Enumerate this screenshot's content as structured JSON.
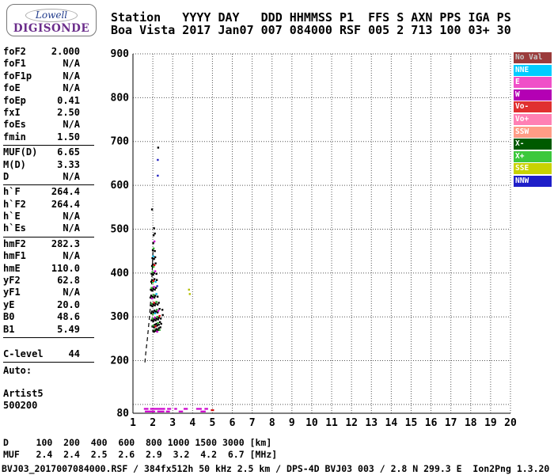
{
  "logo": {
    "line1": "Lowell",
    "line2": "DIGISONDE"
  },
  "header": {
    "line1": "Station   YYYY DAY   DDD HHMMSS P1  FFS S AXN PPS IGA PS",
    "line2": "Boa Vista 2017 Jan07 007 084000 RSF 005 2 713 100 03+ 30"
  },
  "params": {
    "groups": [
      {
        "rows": [
          {
            "label": "foF2",
            "value": "2.000"
          },
          {
            "label": "foF1",
            "value": "N/A"
          },
          {
            "label": "foF1p",
            "value": "N/A"
          },
          {
            "label": "foE",
            "value": "N/A"
          },
          {
            "label": "foEp",
            "value": "0.41"
          },
          {
            "label": "fxI",
            "value": "2.50"
          },
          {
            "label": "foEs",
            "value": "N/A"
          },
          {
            "label": "fmin",
            "value": "1.50"
          }
        ]
      },
      {
        "rows": [
          {
            "label": "MUF(D)",
            "value": "6.65"
          },
          {
            "label": "M(D)",
            "value": "3.33"
          },
          {
            "label": "D",
            "value": "N/A"
          }
        ]
      },
      {
        "rows": [
          {
            "label": "h`F",
            "value": "264.4"
          },
          {
            "label": "h`F2",
            "value": "264.4"
          },
          {
            "label": "h`E",
            "value": "N/A"
          },
          {
            "label": "h`Es",
            "value": "N/A"
          }
        ]
      },
      {
        "rows": [
          {
            "label": "hmF2",
            "value": "282.3"
          },
          {
            "label": "hmF1",
            "value": "N/A"
          },
          {
            "label": "hmE",
            "value": "110.0"
          },
          {
            "label": "yF2",
            "value": "62.8"
          },
          {
            "label": "yF1",
            "value": "N/A"
          },
          {
            "label": "yE",
            "value": "20.0"
          },
          {
            "label": "B0",
            "value": "48.6"
          },
          {
            "label": "B1",
            "value": "5.49"
          }
        ]
      },
      {
        "rows": [
          {
            "label": "C-level",
            "value": "44"
          }
        ]
      }
    ],
    "footer": {
      "auto_label": "Auto:",
      "lines": [
        "Artist5",
        "500200"
      ]
    }
  },
  "legend": {
    "items": [
      {
        "label": "No Val",
        "bg": "#9b3b3b",
        "fg": "#c8c8c8"
      },
      {
        "label": "NNE",
        "bg": "#00ccff",
        "fg": "#ffffff"
      },
      {
        "label": "E",
        "bg": "#f050c8",
        "fg": "#ffffff"
      },
      {
        "label": "W",
        "bg": "#b400b4",
        "fg": "#ffffff"
      },
      {
        "label": "Vo-",
        "bg": "#e03030",
        "fg": "#ffffff"
      },
      {
        "label": "Vo+",
        "bg": "#ff80b4",
        "fg": "#ffffff"
      },
      {
        "label": "SSW",
        "bg": "#ff9c86",
        "fg": "#ffffff"
      },
      {
        "label": "X-",
        "bg": "#005a00",
        "fg": "#ffffff"
      },
      {
        "label": "X+",
        "bg": "#3cc83c",
        "fg": "#ffffff"
      },
      {
        "label": "SSE",
        "bg": "#c8d200",
        "fg": "#ffffff"
      },
      {
        "label": "NNW",
        "bg": "#1e1ec8",
        "fg": "#ffffff"
      }
    ]
  },
  "chart_data": {
    "type": "scatter",
    "title": "",
    "xlabel": "",
    "ylabel": "",
    "xlim": [
      1,
      20
    ],
    "ylim": [
      80,
      900
    ],
    "grid": true,
    "x_ticks": [
      1,
      2,
      3,
      4,
      5,
      6,
      7,
      8,
      9,
      10,
      11,
      12,
      13,
      14,
      15,
      16,
      17,
      18,
      19,
      20
    ],
    "y_ticks": [
      80,
      200,
      300,
      400,
      500,
      600,
      700,
      800,
      900
    ],
    "point_colors": {
      "K": "#000000",
      "G": "#30b030",
      "DG": "#006000",
      "M": "#cc00cc",
      "R": "#e00000",
      "C": "#00b4e6",
      "B": "#2020c0",
      "P": "#ff80b4",
      "Y": "#b4be00"
    },
    "profile": {
      "color": "#000000",
      "style": "dashed",
      "points": [
        [
          1.6,
          196
        ],
        [
          1.63,
          210
        ],
        [
          1.67,
          228
        ],
        [
          1.72,
          248
        ],
        [
          1.77,
          270
        ],
        [
          1.82,
          294
        ],
        [
          1.87,
          320
        ],
        [
          1.91,
          348
        ],
        [
          1.94,
          378
        ],
        [
          1.97,
          408
        ],
        [
          1.99,
          432
        ],
        [
          2.01,
          455
        ]
      ]
    },
    "es_trace": [
      {
        "y": 90,
        "color": "#cc00cc",
        "segments": [
          [
            1.55,
            1.78
          ],
          [
            1.86,
            2.62
          ],
          [
            2.72,
            2.92
          ],
          [
            3.08,
            3.22
          ],
          [
            3.55,
            3.76
          ],
          [
            4.18,
            4.46
          ],
          [
            4.6,
            4.78
          ]
        ]
      },
      {
        "y": 84,
        "color": "#cc00cc",
        "segments": [
          [
            1.6,
            2.12
          ],
          [
            2.22,
            2.58
          ],
          [
            2.66,
            2.86
          ],
          [
            3.3,
            3.52
          ],
          [
            4.4,
            4.66
          ]
        ]
      },
      {
        "y": 87,
        "color": "#cc0000",
        "segments": [
          [
            4.92,
            5.08
          ]
        ]
      }
    ],
    "points": [
      [
        2.02,
        268,
        "K"
      ],
      [
        2.06,
        266,
        "K"
      ],
      [
        2.1,
        270,
        "G"
      ],
      [
        2.14,
        268,
        "K"
      ],
      [
        2.18,
        272,
        "K"
      ],
      [
        2.22,
        266,
        "M"
      ],
      [
        2.26,
        270,
        "K"
      ],
      [
        2.3,
        274,
        "K"
      ],
      [
        2.34,
        270,
        "G"
      ],
      [
        2.38,
        276,
        "K"
      ],
      [
        1.98,
        278,
        "K"
      ],
      [
        2.02,
        280,
        "G"
      ],
      [
        2.06,
        276,
        "K"
      ],
      [
        2.1,
        282,
        "K"
      ],
      [
        2.14,
        278,
        "R"
      ],
      [
        2.18,
        284,
        "K"
      ],
      [
        2.22,
        280,
        "K"
      ],
      [
        2.26,
        286,
        "G"
      ],
      [
        2.3,
        282,
        "K"
      ],
      [
        2.36,
        288,
        "K"
      ],
      [
        2.42,
        284,
        "K"
      ],
      [
        1.94,
        292,
        "K"
      ],
      [
        1.98,
        296,
        "G"
      ],
      [
        2.02,
        290,
        "K"
      ],
      [
        2.06,
        294,
        "K"
      ],
      [
        2.1,
        298,
        "M"
      ],
      [
        2.14,
        292,
        "K"
      ],
      [
        2.18,
        296,
        "K"
      ],
      [
        2.22,
        300,
        "G"
      ],
      [
        2.26,
        294,
        "K"
      ],
      [
        2.3,
        298,
        "K"
      ],
      [
        2.34,
        302,
        "R"
      ],
      [
        2.4,
        296,
        "K"
      ],
      [
        2.5,
        304,
        "K"
      ],
      [
        1.92,
        308,
        "K"
      ],
      [
        1.96,
        312,
        "K"
      ],
      [
        2.0,
        306,
        "G"
      ],
      [
        2.04,
        310,
        "K"
      ],
      [
        2.08,
        314,
        "K"
      ],
      [
        2.12,
        308,
        "C"
      ],
      [
        2.16,
        312,
        "K"
      ],
      [
        2.2,
        316,
        "G"
      ],
      [
        2.24,
        310,
        "K"
      ],
      [
        2.28,
        314,
        "M"
      ],
      [
        2.34,
        318,
        "K"
      ],
      [
        2.48,
        316,
        "K"
      ],
      [
        1.9,
        326,
        "K"
      ],
      [
        1.94,
        330,
        "G"
      ],
      [
        1.98,
        324,
        "K"
      ],
      [
        2.02,
        328,
        "K"
      ],
      [
        2.06,
        332,
        "R"
      ],
      [
        2.1,
        326,
        "K"
      ],
      [
        2.14,
        330,
        "K"
      ],
      [
        2.18,
        334,
        "G"
      ],
      [
        2.24,
        328,
        "K"
      ],
      [
        2.3,
        332,
        "K"
      ],
      [
        1.88,
        344,
        "K"
      ],
      [
        1.92,
        348,
        "K"
      ],
      [
        1.96,
        342,
        "M"
      ],
      [
        2.0,
        346,
        "K"
      ],
      [
        2.04,
        350,
        "G"
      ],
      [
        2.08,
        344,
        "K"
      ],
      [
        2.12,
        348,
        "K"
      ],
      [
        2.18,
        352,
        "C"
      ],
      [
        2.24,
        346,
        "K"
      ],
      [
        1.9,
        362,
        "K"
      ],
      [
        1.94,
        366,
        "G"
      ],
      [
        1.98,
        360,
        "K"
      ],
      [
        2.02,
        364,
        "K"
      ],
      [
        2.06,
        368,
        "M"
      ],
      [
        2.1,
        362,
        "K"
      ],
      [
        2.16,
        366,
        "K"
      ],
      [
        2.22,
        370,
        "B"
      ],
      [
        1.92,
        380,
        "K"
      ],
      [
        1.96,
        384,
        "K"
      ],
      [
        2.0,
        378,
        "G"
      ],
      [
        2.04,
        382,
        "R"
      ],
      [
        2.08,
        386,
        "K"
      ],
      [
        2.14,
        380,
        "C"
      ],
      [
        2.2,
        384,
        "K"
      ],
      [
        1.94,
        398,
        "K"
      ],
      [
        1.98,
        402,
        "G"
      ],
      [
        2.02,
        396,
        "K"
      ],
      [
        2.06,
        400,
        "K"
      ],
      [
        2.12,
        404,
        "M"
      ],
      [
        2.18,
        398,
        "K"
      ],
      [
        1.96,
        416,
        "K"
      ],
      [
        2.0,
        420,
        "K"
      ],
      [
        2.04,
        414,
        "G"
      ],
      [
        2.08,
        418,
        "R"
      ],
      [
        2.14,
        422,
        "K"
      ],
      [
        1.98,
        434,
        "K"
      ],
      [
        2.02,
        438,
        "C"
      ],
      [
        2.06,
        432,
        "K"
      ],
      [
        2.12,
        436,
        "K"
      ],
      [
        2.0,
        452,
        "K"
      ],
      [
        2.04,
        456,
        "G"
      ],
      [
        2.1,
        450,
        "K"
      ],
      [
        2.02,
        468,
        "K"
      ],
      [
        2.08,
        472,
        "M"
      ],
      [
        2.04,
        486,
        "K"
      ],
      [
        2.1,
        490,
        "K"
      ],
      [
        2.06,
        502,
        "K"
      ],
      [
        1.96,
        545,
        "K"
      ],
      [
        2.25,
        622,
        "B"
      ],
      [
        2.25,
        658,
        "B"
      ],
      [
        2.27,
        686,
        "K"
      ],
      [
        3.82,
        362,
        "Y"
      ],
      [
        3.86,
        352,
        "Y"
      ]
    ]
  },
  "dmuf_table": {
    "line1": "D     100  200  400  600  800 1000 1500 3000 [km]",
    "line2": "MUF   2.4  2.4  2.5  2.6  2.9  3.2  4.2  6.7 [MHz]"
  },
  "status_line": "BVJ03_2017007084000.RSF / 384fx512h 50 kHz 2.5 km / DPS-4D BVJ03 003 / 2.8 N 299.3 E  Ion2Png 1.3.20"
}
